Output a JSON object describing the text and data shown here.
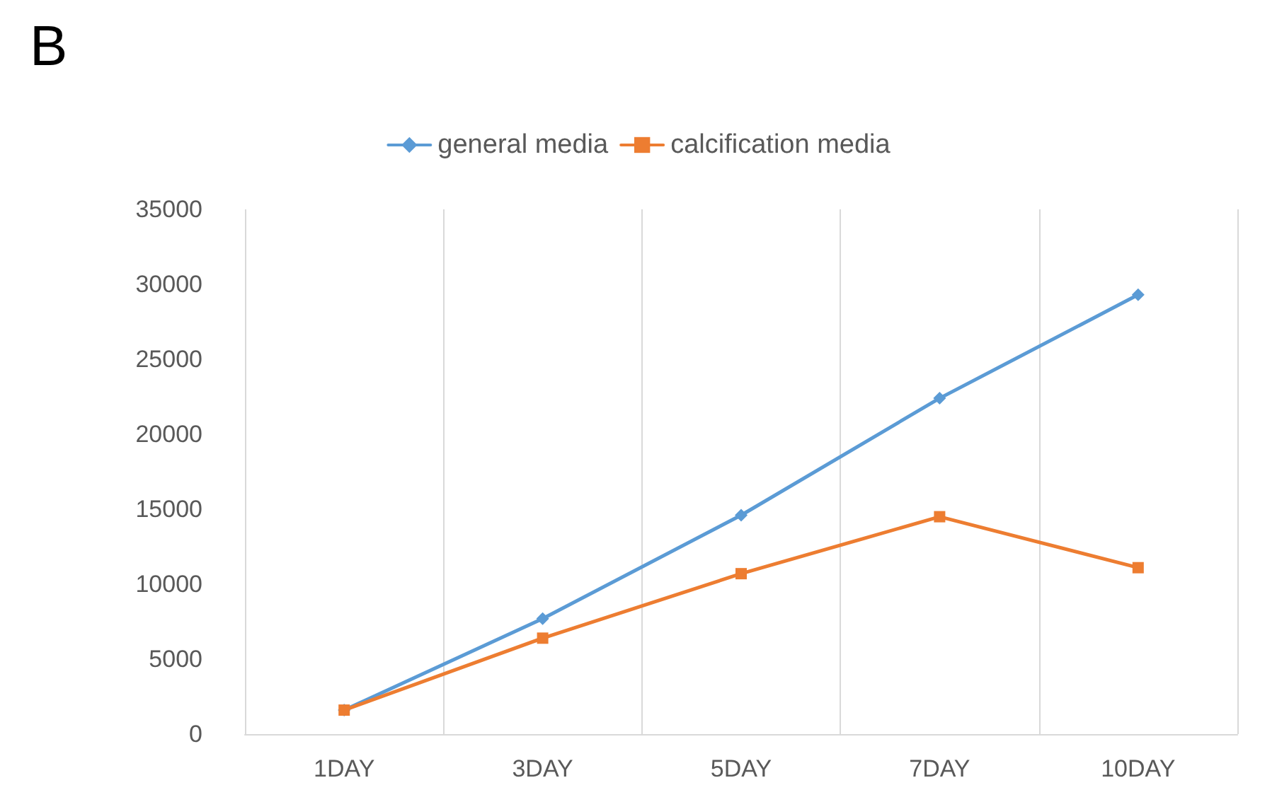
{
  "chart_data": {
    "type": "line",
    "title": "B",
    "categories": [
      "1DAY",
      "3DAY",
      "5DAY",
      "7DAY",
      "10DAY"
    ],
    "series": [
      {
        "name": "general media",
        "color": "#5b9bd5",
        "marker": "diamond",
        "values": [
          1600,
          7700,
          14600,
          22400,
          29300
        ]
      },
      {
        "name": "calcification media",
        "color": "#ed7d31",
        "marker": "square",
        "values": [
          1600,
          6400,
          10700,
          14500,
          11100
        ]
      }
    ],
    "ylim": [
      0,
      35000
    ],
    "yticks": [
      0,
      5000,
      10000,
      15000,
      20000,
      25000,
      30000,
      35000
    ],
    "grid": "x",
    "legend": "top",
    "line_style": "solid"
  }
}
